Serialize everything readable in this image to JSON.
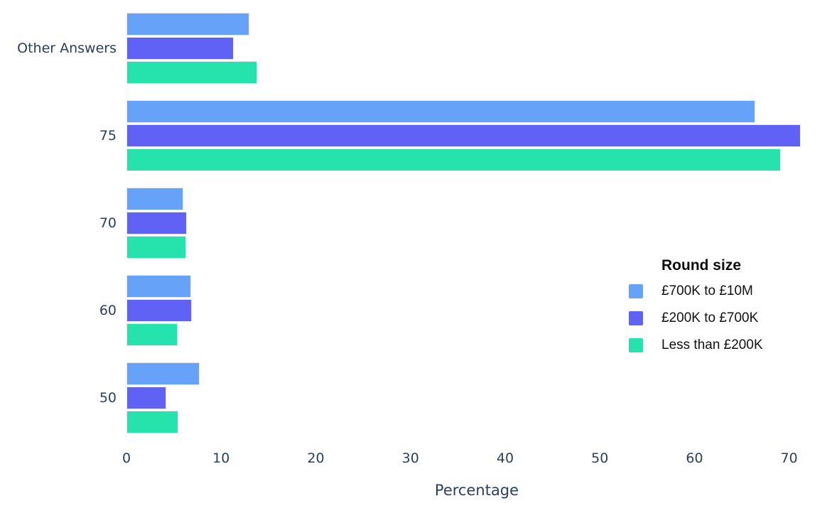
{
  "chart_data": {
    "type": "bar",
    "orientation": "horizontal",
    "title": "",
    "xlabel": "Percentage",
    "ylabel": "",
    "categories": [
      "Other Answers",
      "75",
      "70",
      "60",
      "50"
    ],
    "series": [
      {
        "name": "£700K to £10M",
        "color": "#66A2F8",
        "values": [
          13.0,
          66.4,
          6.0,
          6.8,
          7.7
        ]
      },
      {
        "name": "£200K to £700K",
        "color": "#5F62F5",
        "values": [
          11.3,
          71.2,
          6.4,
          6.9,
          4.2
        ]
      },
      {
        "name": "Less than £200K",
        "color": "#26E2AD",
        "values": [
          13.8,
          69.1,
          6.3,
          5.4,
          5.5
        ]
      }
    ],
    "legend_title": "Round size",
    "legend_position": "right-middle",
    "x_ticks": [
      0,
      10,
      20,
      30,
      40,
      50,
      60,
      70
    ],
    "x_max": 74,
    "grid": false,
    "background": "#ffffff",
    "axis_text_color": "#2a3f5f",
    "bar_border_color": "#e4e7f5"
  }
}
